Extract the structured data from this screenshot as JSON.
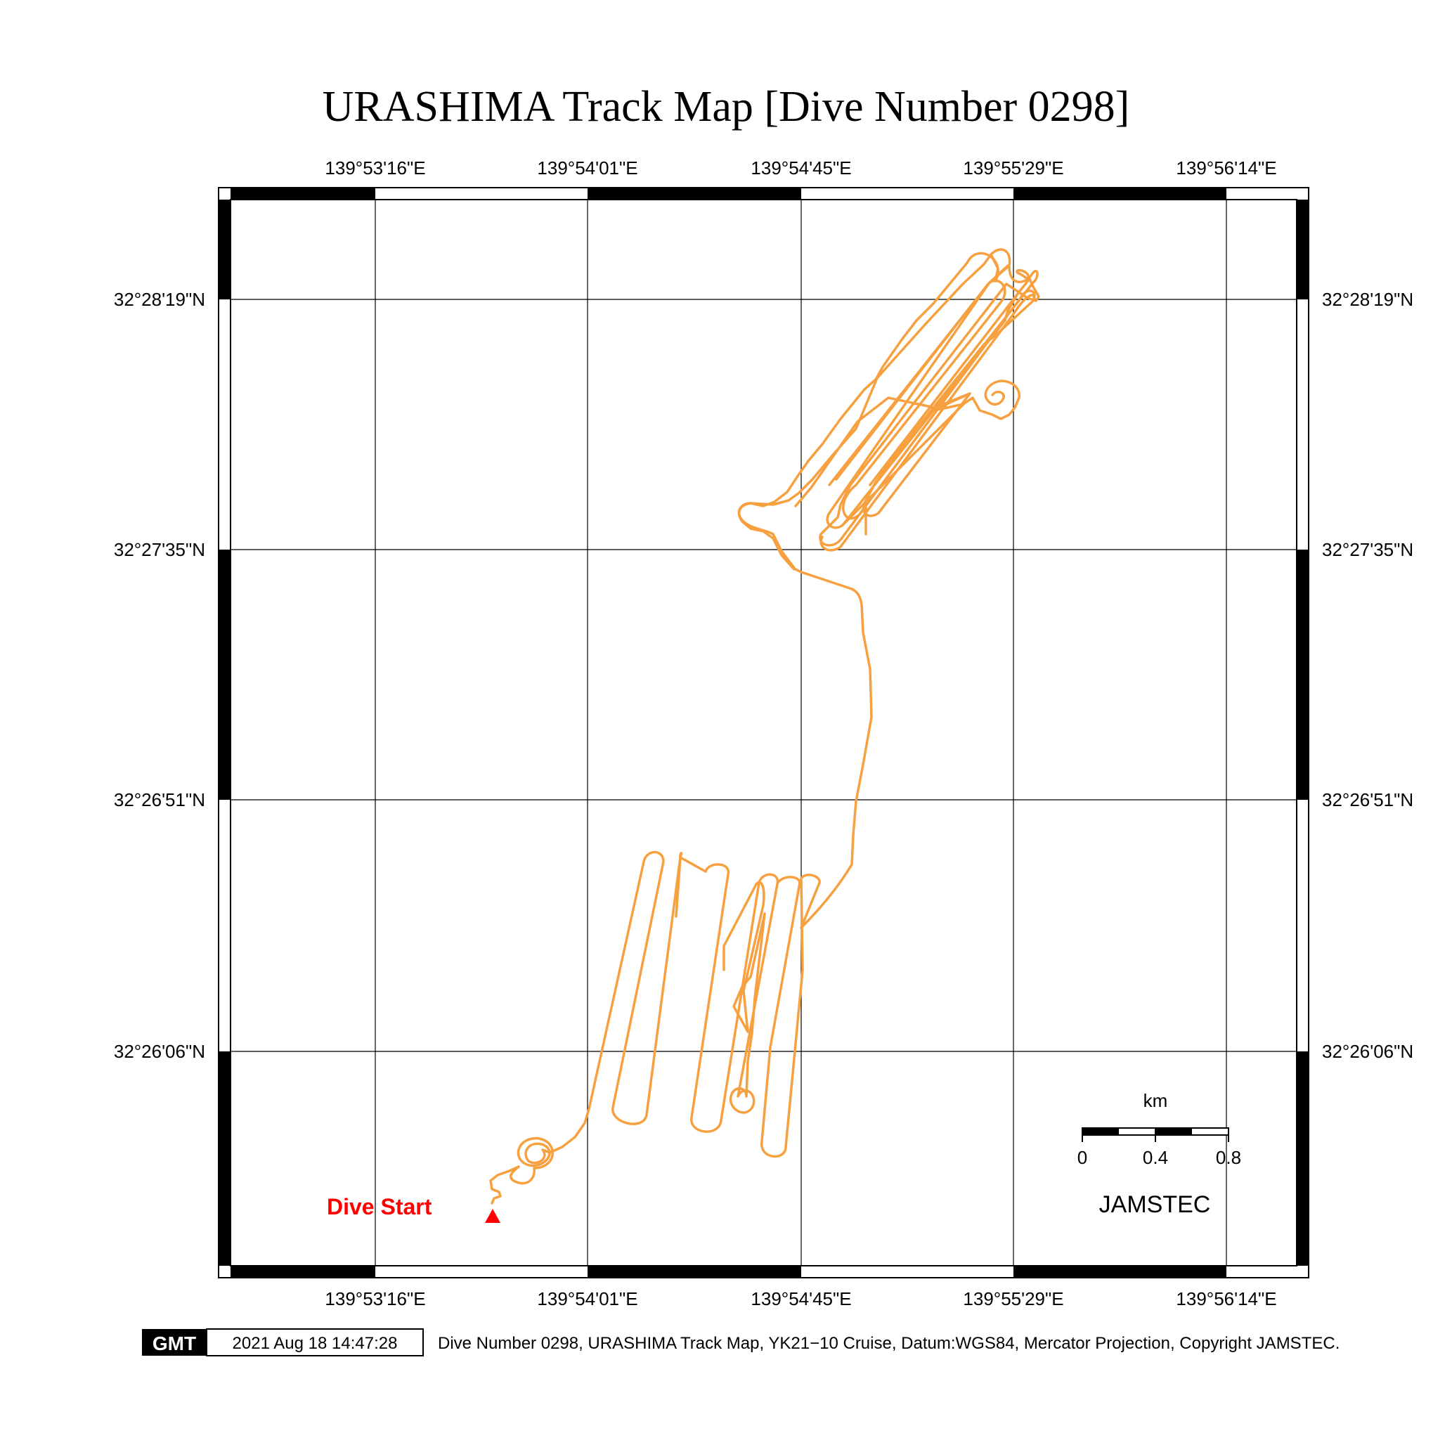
{
  "title": "URASHIMA Track Map [Dive Number 0298]",
  "axes": {
    "lon_labels": [
      "139°53'16\"E",
      "139°54'01\"E",
      "139°54'45\"E",
      "139°55'29\"E",
      "139°56'14\"E"
    ],
    "lat_labels": [
      "32°28'19\"N",
      "32°27'35\"N",
      "32°26'51\"N",
      "32°26'06\"N"
    ]
  },
  "scale_bar": {
    "unit": "km",
    "ticks": [
      "0",
      "0.4",
      "0.8"
    ]
  },
  "organization": "JAMSTEC",
  "marker": {
    "label": "Dive Start",
    "color": "#ff0000"
  },
  "track_color": "#f7a040",
  "footer": {
    "logo": "GMT",
    "timestamp": "2021 Aug 18 14:47:28",
    "caption": "Dive Number 0298, URASHIMA Track Map, YK21−10 Cruise, Datum:WGS84, Mercator Projection, Copyright JAMSTEC."
  }
}
